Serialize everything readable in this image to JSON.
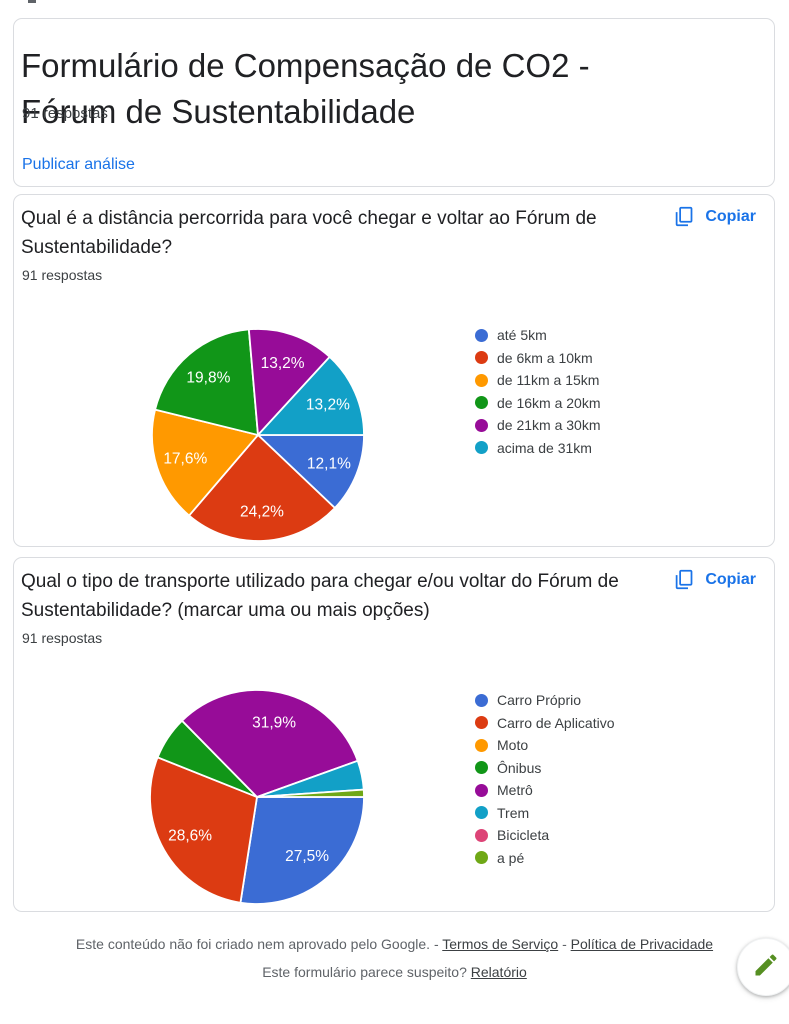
{
  "header": {
    "title_lines": [
      "Formulário de Compensação de CO2 -",
      "Fórum de Sustentabilidade"
    ],
    "responses_text": "91 respostas",
    "publish_link": "Publicar análise"
  },
  "questions": [
    {
      "title_lines": [
        "Qual é a distância percorrida para você chegar e voltar ao Fórum de",
        "Sustentabilidade?"
      ],
      "responses_text": "91 respostas",
      "copy_label": "Copiar"
    },
    {
      "title_lines": [
        "Qual o tipo de transporte utilizado para chegar e/ou voltar do Fórum de",
        "Sustentabilidade? (marcar uma ou mais opções)"
      ],
      "responses_text": "91 respostas",
      "copy_label": "Copiar"
    }
  ],
  "chart_data": [
    {
      "type": "pie",
      "title": "Qual é a distância percorrida para você chegar e voltar ao Fórum de Sustentabilidade?",
      "responses": 91,
      "start_angle_deg": 90,
      "direction": "clockwise",
      "legend_position": "right",
      "categories": [
        "até 5km",
        "de 6km a 10km",
        "de 11km a 15km",
        "de 16km a 20km",
        "de 21km a 30km",
        "acima de 31km"
      ],
      "values": [
        12.1,
        24.2,
        17.6,
        19.8,
        13.2,
        13.2
      ],
      "labels": [
        "12,1%",
        "24,2%",
        "17,6%",
        "19,8%",
        "13,2%",
        "13,2%"
      ],
      "colors": [
        "#3B6CD4",
        "#DC3B12",
        "#FF9900",
        "#119618",
        "#970C98",
        "#12A0C7"
      ],
      "show_label": [
        true,
        true,
        true,
        true,
        true,
        true
      ]
    },
    {
      "type": "pie",
      "title": "Qual o tipo de transporte utilizado para chegar e/ou voltar do Fórum de Sustentabilidade? (marcar uma ou mais opções)",
      "responses": 91,
      "start_angle_deg": 90,
      "direction": "clockwise",
      "legend_position": "right",
      "categories": [
        "Carro Próprio",
        "Carro de Aplicativo",
        "Moto",
        "Ônibus",
        "Metrô",
        "Trem",
        "Bicicleta",
        "a pé"
      ],
      "values": [
        27.5,
        28.6,
        0,
        6.6,
        31.9,
        4.4,
        0,
        1.1
      ],
      "labels": [
        "27,5%",
        "28,6%",
        "",
        "",
        "31,9%",
        "",
        "",
        ""
      ],
      "colors": [
        "#3B6CD4",
        "#DC3B12",
        "#FF9900",
        "#119618",
        "#970C98",
        "#12A0C7",
        "#DD4477",
        "#6FA816"
      ],
      "show_label": [
        true,
        true,
        false,
        false,
        true,
        false,
        false,
        false
      ]
    }
  ],
  "footer": {
    "disclaimer_prefix": "Este conteúdo não foi criado nem aprovado pelo Google. - ",
    "terms_link": "Termos de Serviço",
    "separator": " - ",
    "privacy_link": "Política de Privacidade",
    "report_prefix": "Este formulário parece suspeito? ",
    "report_link": "Relatório"
  },
  "colors": {
    "accent_blue": "#1A73E8",
    "card_border": "#DADCE0",
    "pencil_green": "#568F22"
  }
}
